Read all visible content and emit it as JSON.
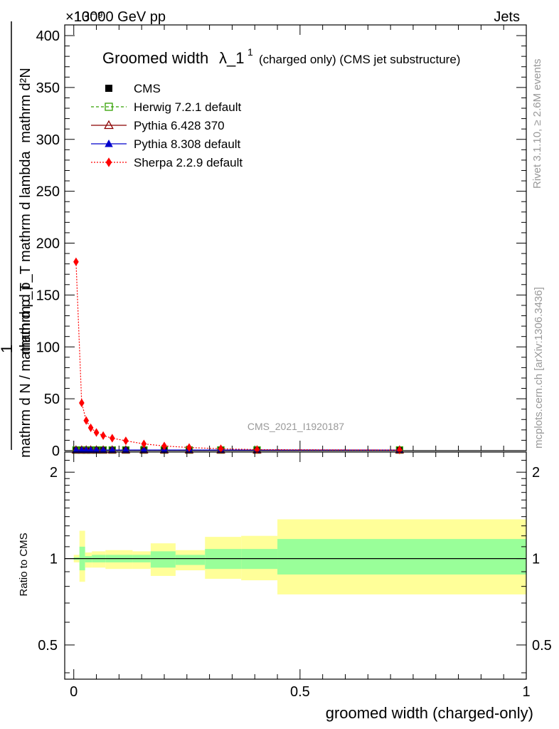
{
  "header": {
    "energy": "13000 GeV pp",
    "category": "Jets",
    "exponent": "×10⁻⁹"
  },
  "side_labels": {
    "rivet": "Rivet 3.1.10, ≥ 2.6M events",
    "mcplots": "mcplots.cern.ch [arXiv:1306.3436]"
  },
  "watermark": "CMS_2021_I1920187",
  "chart_data": [
    {
      "type": "line",
      "title": "Groomed width",
      "title_symbol": "λ_1",
      "title_superscript": "1",
      "subtitle": "(charged only) (CMS jet substructure)",
      "ylabel_numerator": "1",
      "ylabel_top": "mathrm d²N",
      "ylabel_mid": "mathrm d p_T mathrm d lambda",
      "ylabel_bottom": "mathrm d N / mathrm d p_T",
      "ylim": [
        0,
        410
      ],
      "yticks": [
        0,
        50,
        100,
        150,
        200,
        250,
        300,
        350,
        400
      ],
      "xlim": [
        -0.02,
        1.0
      ],
      "legend_placement": "top-left",
      "series": [
        {
          "name": "CMS",
          "marker": "square-filled",
          "color": "#000000",
          "x": [
            0.005,
            0.0175,
            0.0275,
            0.0375,
            0.05,
            0.065,
            0.085,
            0.115,
            0.155,
            0.2,
            0.255,
            0.325,
            0.405,
            0.72
          ],
          "y": [
            0.6,
            0.6,
            0.6,
            0.6,
            0.6,
            0.6,
            0.6,
            0.6,
            0.6,
            0.6,
            0.6,
            0.6,
            0.6,
            0.6
          ]
        },
        {
          "name": "Herwig 7.2.1 default",
          "marker": "square-open",
          "line": "dashed",
          "color": "#33a000",
          "x": [
            0.005,
            0.0175,
            0.0275,
            0.0375,
            0.05,
            0.065,
            0.085,
            0.115,
            0.155,
            0.2,
            0.255,
            0.325,
            0.405,
            0.72
          ],
          "y": [
            0.6,
            0.6,
            0.6,
            0.6,
            0.6,
            0.6,
            0.6,
            0.6,
            0.6,
            0.6,
            0.6,
            0.6,
            0.6,
            0.6
          ]
        },
        {
          "name": "Pythia 6.428 370",
          "marker": "triangle-open",
          "line": "solid",
          "color": "#8b0000",
          "x": [
            0.005,
            0.0175,
            0.0275,
            0.0375,
            0.05,
            0.065,
            0.085,
            0.115,
            0.155,
            0.2,
            0.255,
            0.325,
            0.405,
            0.72
          ],
          "y": [
            0.6,
            0.6,
            0.6,
            0.6,
            0.6,
            0.6,
            0.6,
            0.6,
            0.6,
            0.6,
            0.6,
            0.6,
            0.6,
            0.6
          ]
        },
        {
          "name": "Pythia 8.308 default",
          "marker": "triangle-filled",
          "line": "solid",
          "color": "#0000cc",
          "x": [
            0.005,
            0.0175,
            0.0275,
            0.0375,
            0.05,
            0.065,
            0.085,
            0.115,
            0.155,
            0.2,
            0.255,
            0.325,
            0.405,
            0.72
          ],
          "y": [
            0.6,
            0.6,
            0.6,
            0.6,
            0.6,
            0.6,
            0.6,
            0.6,
            0.6,
            0.6,
            0.6,
            0.6,
            0.6,
            0.6
          ]
        },
        {
          "name": "Sherpa 2.2.9 default",
          "marker": "diamond-filled",
          "line": "dotted",
          "color": "#ff0000",
          "x": [
            0.005,
            0.0175,
            0.0275,
            0.0375,
            0.05,
            0.065,
            0.085,
            0.115,
            0.155,
            0.2,
            0.255,
            0.325,
            0.405,
            0.72
          ],
          "y": [
            182,
            46,
            29,
            22,
            17.5,
            14.5,
            12,
            9.5,
            6.5,
            4.5,
            3,
            1.8,
            1.0,
            0.6
          ]
        }
      ]
    },
    {
      "type": "area",
      "ylabel": "Ratio to CMS",
      "xlabel": "groomed width (charged-only)",
      "xlim": [
        -0.02,
        1.0
      ],
      "ylim": [
        0.38,
        2.35
      ],
      "yscale": "log",
      "xticks": [
        0,
        0.5,
        1
      ],
      "xtick_labels": [
        "0",
        "0.5",
        "1"
      ],
      "yticks": [
        0.5,
        1,
        2
      ],
      "ytick_labels": [
        "0.5",
        "1",
        "2"
      ],
      "reference_line": 1,
      "band_colors": {
        "outer": "#ffff99",
        "inner": "#99ff99"
      },
      "bands": [
        {
          "x0": 0.0,
          "x1": 0.0125,
          "outer": [
            0.97,
            1.03
          ],
          "inner": [
            0.99,
            1.01
          ]
        },
        {
          "x0": 0.0125,
          "x1": 0.025,
          "outer": [
            0.83,
            1.25
          ],
          "inner": [
            0.91,
            1.1
          ]
        },
        {
          "x0": 0.025,
          "x1": 0.04,
          "outer": [
            0.93,
            1.05
          ],
          "inner": [
            0.97,
            1.02
          ]
        },
        {
          "x0": 0.04,
          "x1": 0.07,
          "outer": [
            0.93,
            1.06
          ],
          "inner": [
            0.97,
            1.03
          ]
        },
        {
          "x0": 0.07,
          "x1": 0.13,
          "outer": [
            0.92,
            1.07
          ],
          "inner": [
            0.97,
            1.03
          ]
        },
        {
          "x0": 0.13,
          "x1": 0.17,
          "outer": [
            0.92,
            1.06
          ],
          "inner": [
            0.97,
            1.03
          ]
        },
        {
          "x0": 0.17,
          "x1": 0.225,
          "outer": [
            0.87,
            1.13
          ],
          "inner": [
            0.93,
            1.06
          ]
        },
        {
          "x0": 0.225,
          "x1": 0.29,
          "outer": [
            0.91,
            1.07
          ],
          "inner": [
            0.95,
            1.03
          ]
        },
        {
          "x0": 0.29,
          "x1": 0.37,
          "outer": [
            0.85,
            1.19
          ],
          "inner": [
            0.92,
            1.08
          ]
        },
        {
          "x0": 0.37,
          "x1": 0.45,
          "outer": [
            0.84,
            1.2
          ],
          "inner": [
            0.92,
            1.08
          ]
        },
        {
          "x0": 0.45,
          "x1": 1.0,
          "outer": [
            0.75,
            1.37
          ],
          "inner": [
            0.88,
            1.17
          ]
        }
      ]
    }
  ]
}
